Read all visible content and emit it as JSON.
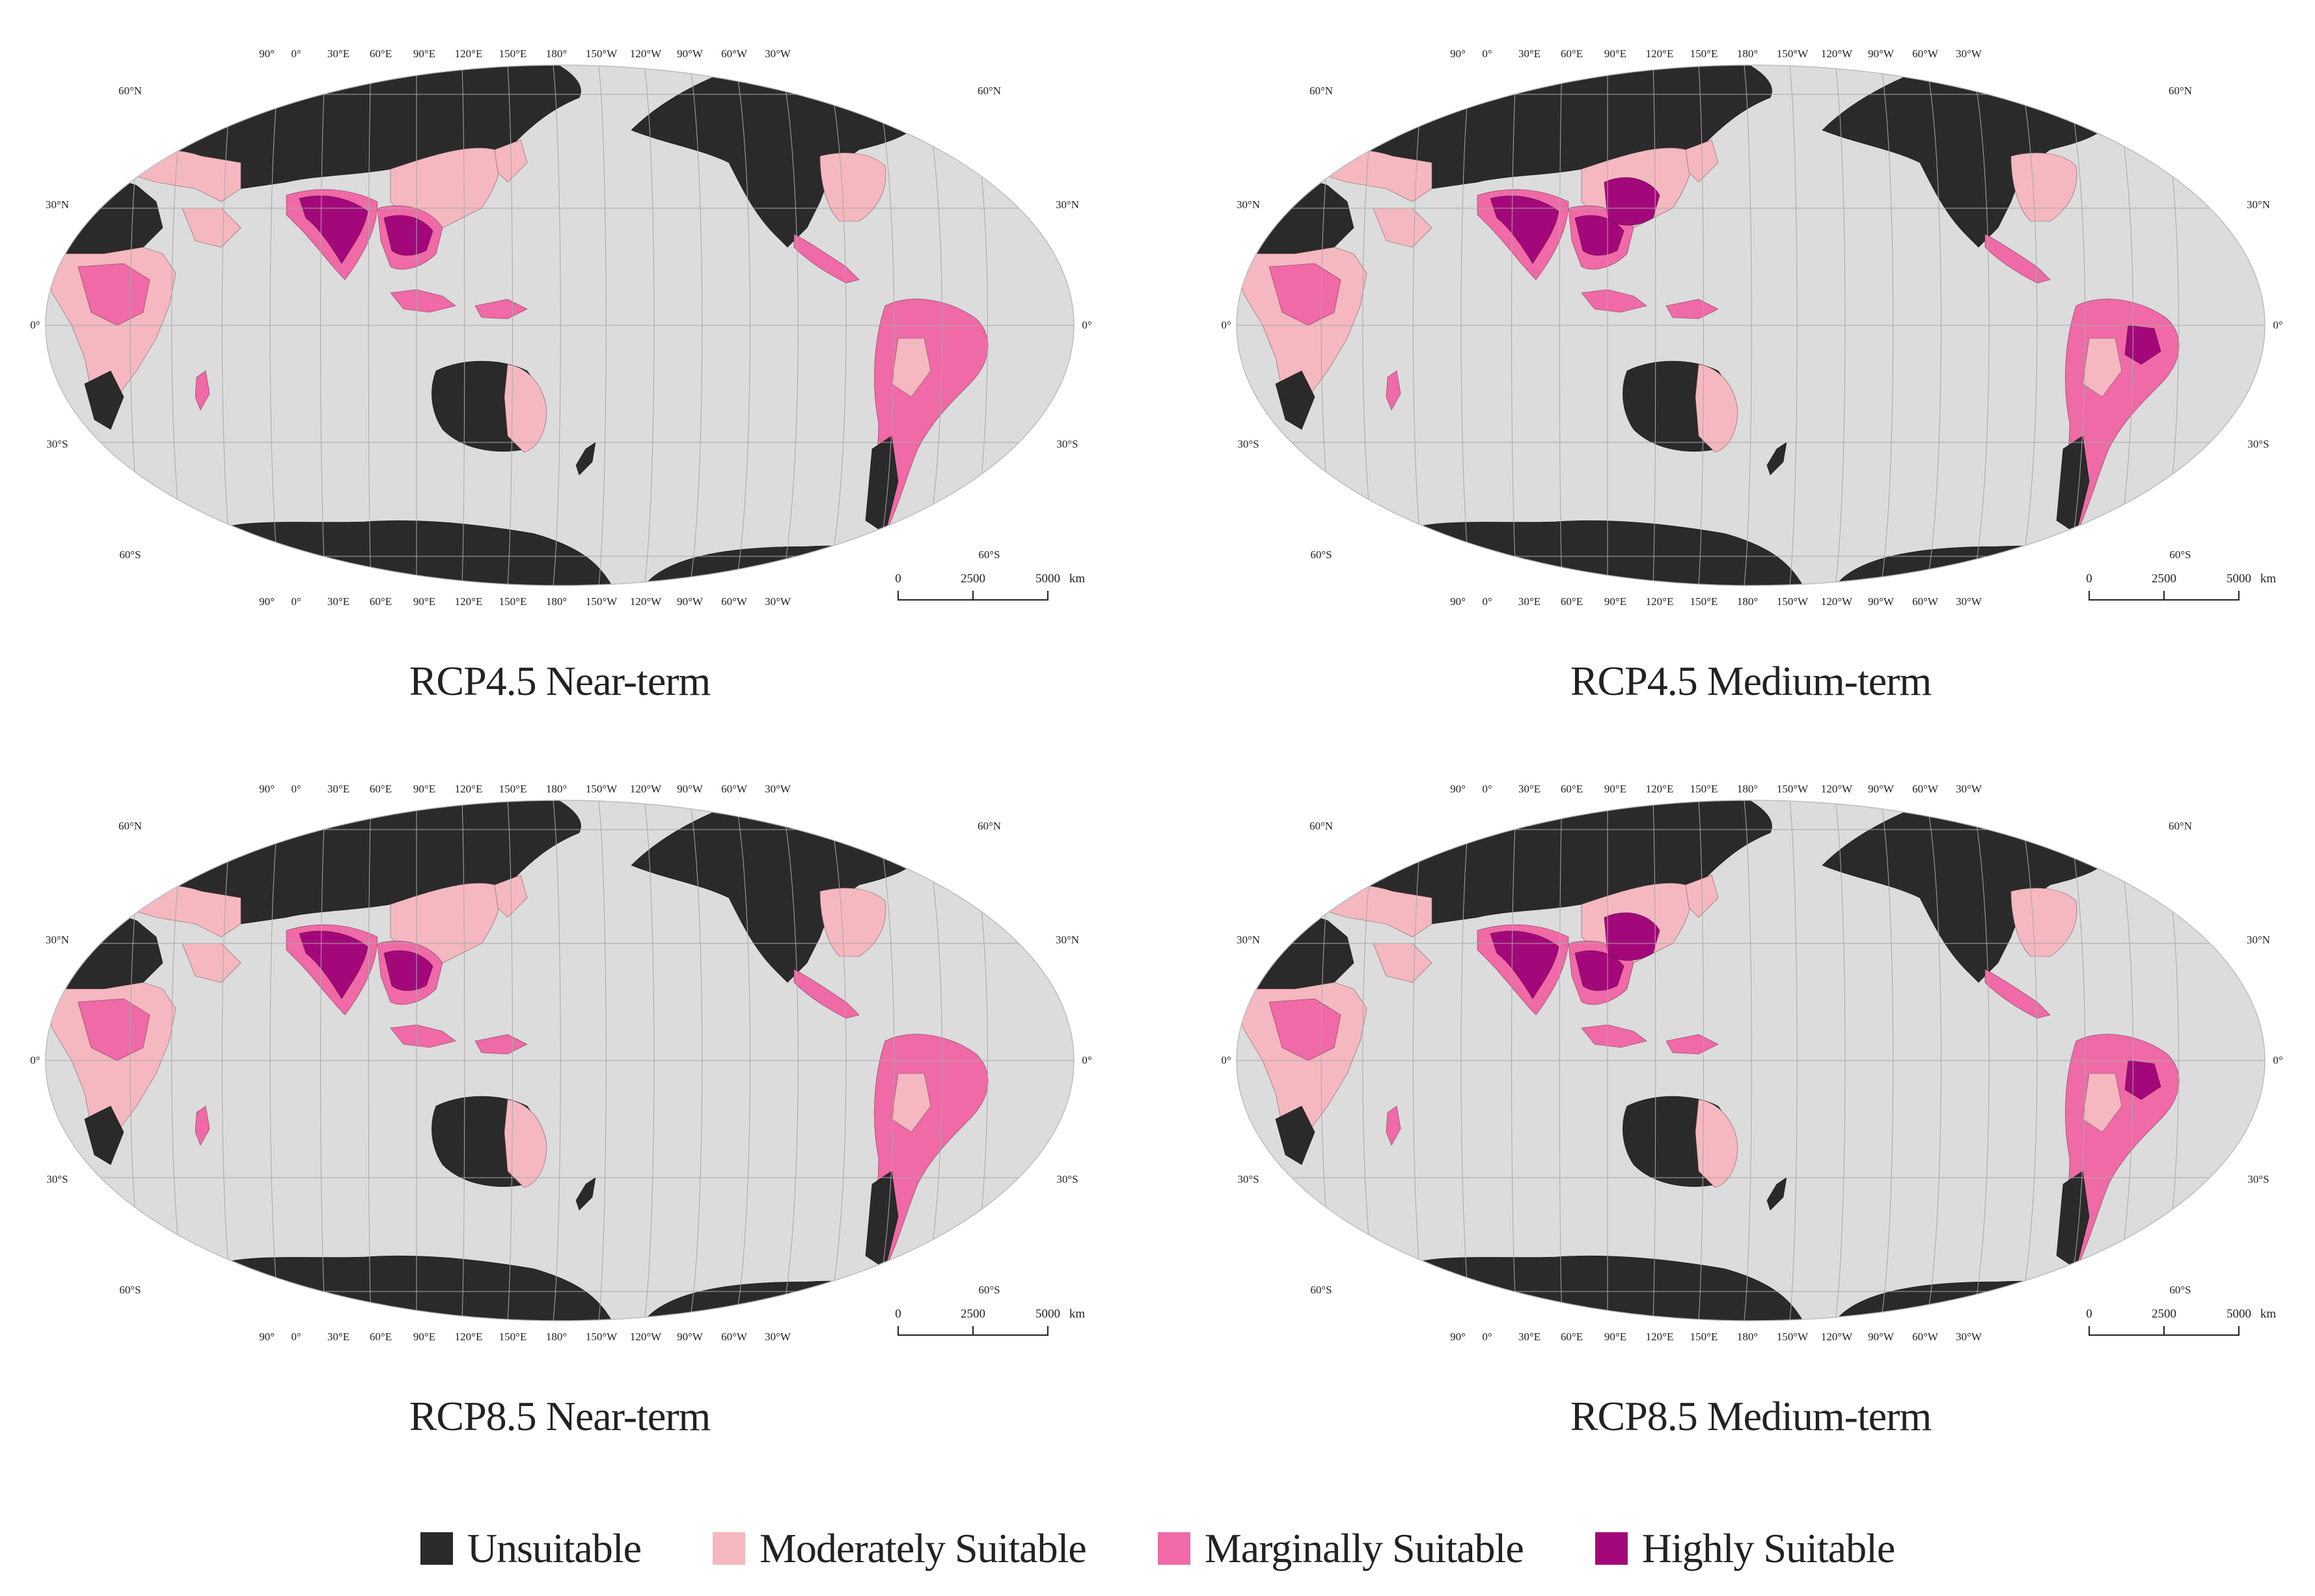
{
  "colors": {
    "unsuitable": "#2a2a2a",
    "moderately": "#f5b8c0",
    "marginally": "#ef6aa6",
    "highly": "#a3087a",
    "ocean": "#dcdcdc",
    "grid": "#a8a8a8"
  },
  "lon_labels_top": [
    "90°",
    "0°",
    "30°E",
    "60°E",
    "90°E",
    "120°E",
    "150°E",
    "180°",
    "150°W",
    "120°W",
    "90°W",
    "60°W",
    "30°W"
  ],
  "lon_labels_bottom": [
    "90°",
    "0°",
    "30°E",
    "60°E",
    "90°E",
    "120°E",
    "150°E",
    "180°",
    "150°W",
    "120°W",
    "90°W",
    "60°W",
    "30°W"
  ],
  "lat_labels": {
    "n60": "60°N",
    "n30": "30°N",
    "eq": "0°",
    "s30": "30°S",
    "s60": "60°S"
  },
  "scale_bar": {
    "labels": [
      "0",
      "2500",
      "5000"
    ],
    "unit": "km"
  },
  "panels": [
    {
      "title": "RCP4.5 Near-term",
      "scenario": "RCP4.5",
      "period": "Near-term",
      "highly_extent": "small"
    },
    {
      "title": "RCP4.5 Medium-term",
      "scenario": "RCP4.5",
      "period": "Medium-term",
      "highly_extent": "medium"
    },
    {
      "title": "RCP8.5 Near-term",
      "scenario": "RCP8.5",
      "period": "Near-term",
      "highly_extent": "small"
    },
    {
      "title": "RCP8.5 Medium-term",
      "scenario": "RCP8.5",
      "period": "Medium-term",
      "highly_extent": "large"
    }
  ],
  "legend": [
    {
      "key": "unsuitable",
      "label": "Unsuitable"
    },
    {
      "key": "moderately",
      "label": "Moderately Suitable"
    },
    {
      "key": "marginally",
      "label": "Marginally Suitable"
    },
    {
      "key": "highly",
      "label": "Highly Suitable"
    }
  ]
}
